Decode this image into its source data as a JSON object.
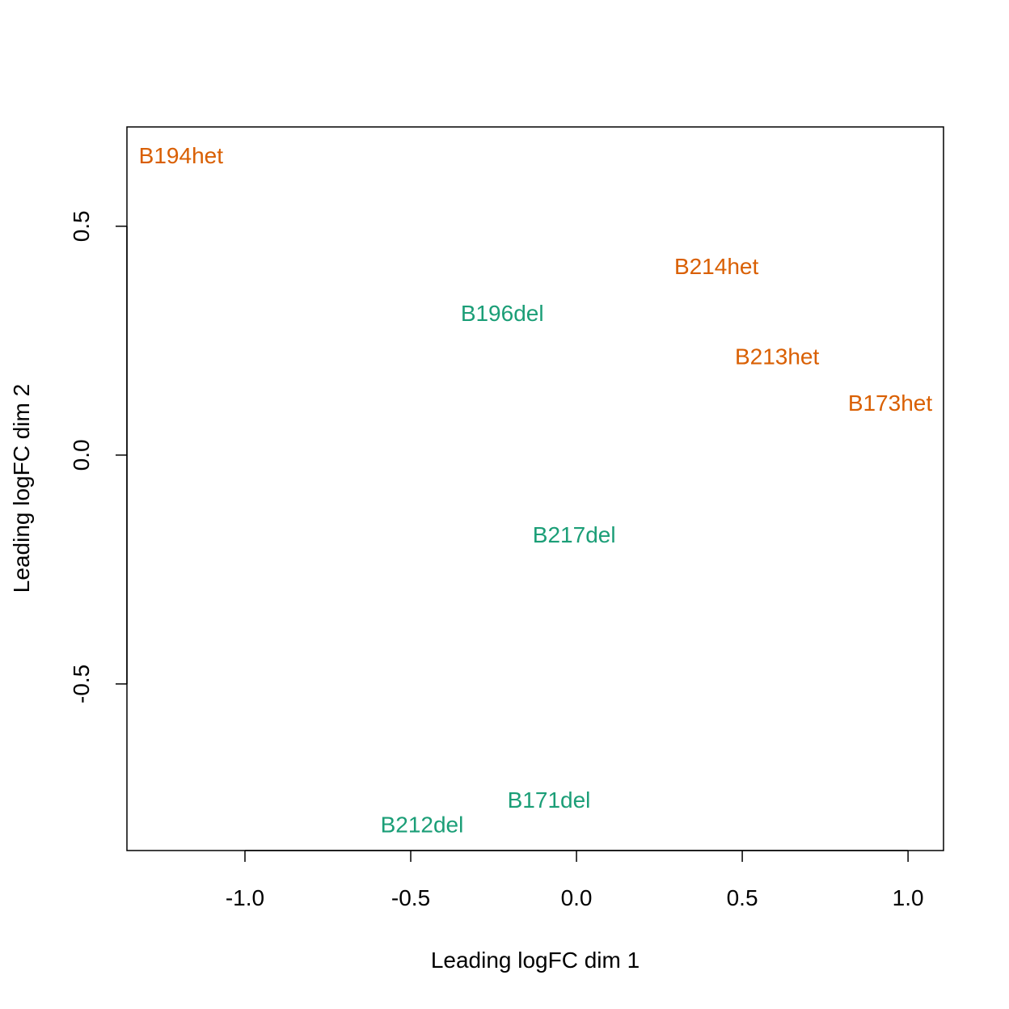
{
  "chart_data": {
    "type": "scatter",
    "title": "",
    "xlabel": "Leading logFC dim 1",
    "ylabel": "Leading logFC dim 2",
    "xlim": [
      -1.356,
      1.107
    ],
    "ylim": [
      -0.864,
      0.717
    ],
    "xticks": [
      -1.0,
      -0.5,
      0.0,
      0.5,
      1.0
    ],
    "xtick_labels": [
      "-1.0",
      "-0.5",
      "0.0",
      "0.5",
      "1.0"
    ],
    "yticks": [
      -0.5,
      0.0,
      0.5
    ],
    "ytick_labels": [
      "-0.5",
      "0.0",
      "0.5"
    ],
    "grid": false,
    "colors": {
      "het": "#D95F02",
      "del": "#1B9E77"
    },
    "points": [
      {
        "label": "B194het",
        "x": -1.193,
        "y": 0.655,
        "group": "het"
      },
      {
        "label": "B214het",
        "x": 0.422,
        "y": 0.413,
        "group": "het"
      },
      {
        "label": "B196del",
        "x": -0.224,
        "y": 0.311,
        "group": "del"
      },
      {
        "label": "B213het",
        "x": 0.605,
        "y": 0.216,
        "group": "het"
      },
      {
        "label": "B173het",
        "x": 0.946,
        "y": 0.115,
        "group": "het"
      },
      {
        "label": "B217del",
        "x": -0.007,
        "y": -0.173,
        "group": "del"
      },
      {
        "label": "B171del",
        "x": -0.083,
        "y": -0.753,
        "group": "del"
      },
      {
        "label": "B212del",
        "x": -0.466,
        "y": -0.807,
        "group": "del"
      }
    ]
  }
}
